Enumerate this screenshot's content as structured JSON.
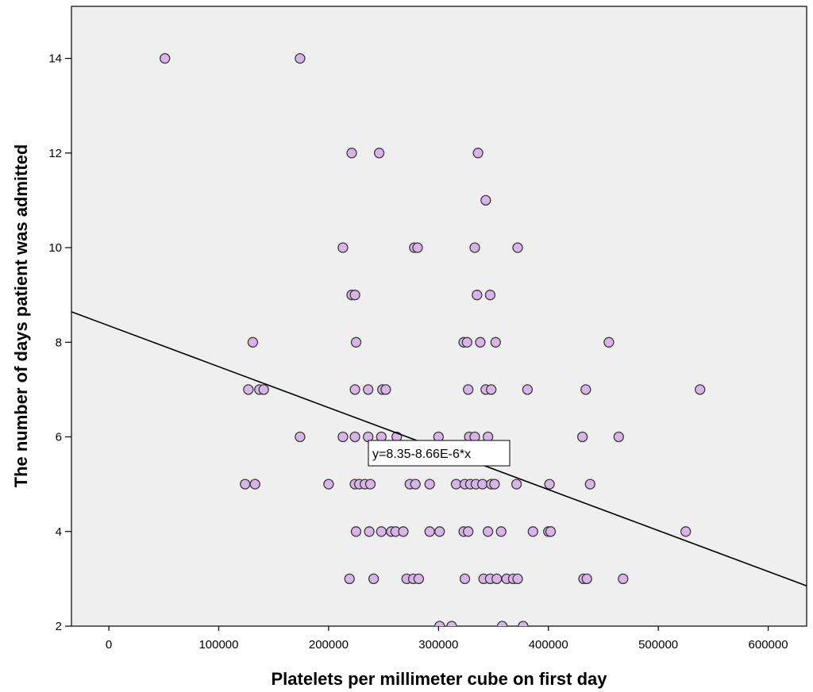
{
  "colors": {
    "plot_background": "#efefef",
    "point_fill": "#d8b4e8",
    "point_stroke": "#3a3a3a",
    "fit_line": "#000000"
  },
  "chart_data": {
    "type": "scatter",
    "xlabel": "Platelets per millimeter cube on first day",
    "ylabel": "The number of days patient was admitted",
    "xlim": [
      -34000,
      635000
    ],
    "ylim": [
      2,
      15.1
    ],
    "x_ticks": [
      0,
      100000,
      200000,
      300000,
      400000,
      500000,
      600000
    ],
    "x_tick_labels": [
      "0",
      "100000",
      "200000",
      "300000",
      "400000",
      "500000",
      "600000"
    ],
    "y_ticks": [
      2,
      4,
      6,
      8,
      10,
      12,
      14
    ],
    "y_tick_labels": [
      "2",
      "4",
      "6",
      "8",
      "10",
      "12",
      "14"
    ],
    "grid": false,
    "fit_line": {
      "intercept": 8.35,
      "slope": -8.66e-06,
      "label": "y=8.35-8.66E-6*x"
    },
    "points": [
      {
        "x": 51000,
        "y": 14
      },
      {
        "x": 174000,
        "y": 14
      },
      {
        "x": 221000,
        "y": 12
      },
      {
        "x": 246000,
        "y": 12
      },
      {
        "x": 336000,
        "y": 12
      },
      {
        "x": 343000,
        "y": 11
      },
      {
        "x": 213000,
        "y": 10
      },
      {
        "x": 278000,
        "y": 10
      },
      {
        "x": 281000,
        "y": 10
      },
      {
        "x": 333000,
        "y": 10
      },
      {
        "x": 372000,
        "y": 10
      },
      {
        "x": 221000,
        "y": 9
      },
      {
        "x": 224000,
        "y": 9
      },
      {
        "x": 335000,
        "y": 9
      },
      {
        "x": 347000,
        "y": 9
      },
      {
        "x": 131000,
        "y": 8
      },
      {
        "x": 225000,
        "y": 8
      },
      {
        "x": 323000,
        "y": 8
      },
      {
        "x": 326000,
        "y": 8
      },
      {
        "x": 338000,
        "y": 8
      },
      {
        "x": 352000,
        "y": 8
      },
      {
        "x": 455000,
        "y": 8
      },
      {
        "x": 127000,
        "y": 7
      },
      {
        "x": 137000,
        "y": 7
      },
      {
        "x": 141000,
        "y": 7
      },
      {
        "x": 224000,
        "y": 7
      },
      {
        "x": 236000,
        "y": 7
      },
      {
        "x": 249000,
        "y": 7
      },
      {
        "x": 252000,
        "y": 7
      },
      {
        "x": 327000,
        "y": 7
      },
      {
        "x": 343000,
        "y": 7
      },
      {
        "x": 348000,
        "y": 7
      },
      {
        "x": 381000,
        "y": 7
      },
      {
        "x": 434000,
        "y": 7
      },
      {
        "x": 538000,
        "y": 7
      },
      {
        "x": 174000,
        "y": 6
      },
      {
        "x": 213000,
        "y": 6
      },
      {
        "x": 224000,
        "y": 6
      },
      {
        "x": 236000,
        "y": 6
      },
      {
        "x": 248000,
        "y": 6
      },
      {
        "x": 262000,
        "y": 6
      },
      {
        "x": 300000,
        "y": 6
      },
      {
        "x": 328000,
        "y": 6
      },
      {
        "x": 333000,
        "y": 6
      },
      {
        "x": 345000,
        "y": 6
      },
      {
        "x": 431000,
        "y": 6
      },
      {
        "x": 464000,
        "y": 6
      },
      {
        "x": 124000,
        "y": 5
      },
      {
        "x": 133000,
        "y": 5
      },
      {
        "x": 200000,
        "y": 5
      },
      {
        "x": 224000,
        "y": 5
      },
      {
        "x": 228000,
        "y": 5
      },
      {
        "x": 233000,
        "y": 5
      },
      {
        "x": 238000,
        "y": 5
      },
      {
        "x": 274000,
        "y": 5
      },
      {
        "x": 279000,
        "y": 5
      },
      {
        "x": 292000,
        "y": 5
      },
      {
        "x": 316000,
        "y": 5
      },
      {
        "x": 324000,
        "y": 5
      },
      {
        "x": 329000,
        "y": 5
      },
      {
        "x": 334000,
        "y": 5
      },
      {
        "x": 340000,
        "y": 5
      },
      {
        "x": 348000,
        "y": 5
      },
      {
        "x": 351000,
        "y": 5
      },
      {
        "x": 371000,
        "y": 5
      },
      {
        "x": 401000,
        "y": 5
      },
      {
        "x": 438000,
        "y": 5
      },
      {
        "x": 225000,
        "y": 4
      },
      {
        "x": 237000,
        "y": 4
      },
      {
        "x": 248000,
        "y": 4
      },
      {
        "x": 257000,
        "y": 4
      },
      {
        "x": 261000,
        "y": 4
      },
      {
        "x": 268000,
        "y": 4
      },
      {
        "x": 292000,
        "y": 4
      },
      {
        "x": 301000,
        "y": 4
      },
      {
        "x": 323000,
        "y": 4
      },
      {
        "x": 327000,
        "y": 4
      },
      {
        "x": 345000,
        "y": 4
      },
      {
        "x": 357000,
        "y": 4
      },
      {
        "x": 386000,
        "y": 4
      },
      {
        "x": 400000,
        "y": 4
      },
      {
        "x": 402000,
        "y": 4
      },
      {
        "x": 525000,
        "y": 4
      },
      {
        "x": 219000,
        "y": 3
      },
      {
        "x": 241000,
        "y": 3
      },
      {
        "x": 271000,
        "y": 3
      },
      {
        "x": 277000,
        "y": 3
      },
      {
        "x": 282000,
        "y": 3
      },
      {
        "x": 324000,
        "y": 3
      },
      {
        "x": 341000,
        "y": 3
      },
      {
        "x": 347000,
        "y": 3
      },
      {
        "x": 353000,
        "y": 3
      },
      {
        "x": 362000,
        "y": 3
      },
      {
        "x": 368000,
        "y": 3
      },
      {
        "x": 372000,
        "y": 3
      },
      {
        "x": 432000,
        "y": 3
      },
      {
        "x": 435000,
        "y": 3
      },
      {
        "x": 468000,
        "y": 3
      },
      {
        "x": 301000,
        "y": 2
      },
      {
        "x": 312000,
        "y": 2
      },
      {
        "x": 358000,
        "y": 2
      },
      {
        "x": 377000,
        "y": 2
      }
    ]
  }
}
